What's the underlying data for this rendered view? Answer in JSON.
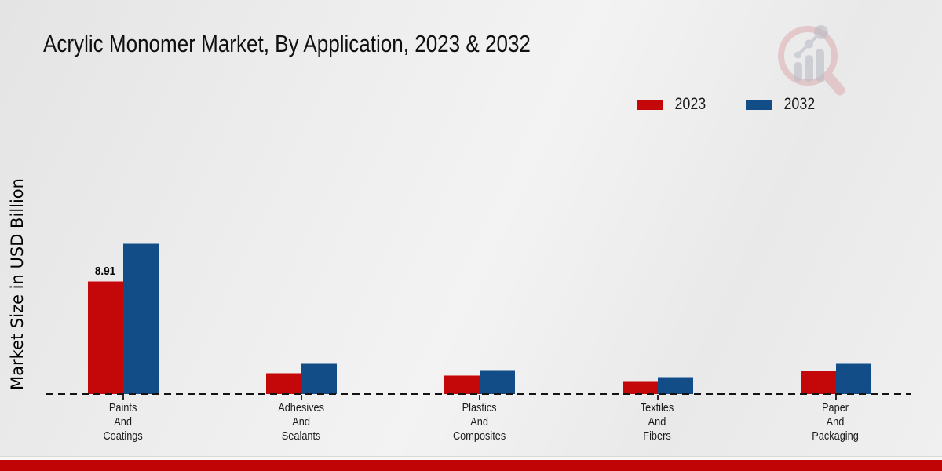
{
  "page": {
    "title": "Acrylic Monomer Market, By Application, 2023 & 2032",
    "logo": "market-research-future-magnifier-logo"
  },
  "colors": {
    "series_2023": "#c40708",
    "series_2032": "#134d87",
    "footer_bar": "#c00304",
    "baseline": "#141414",
    "title_text": "#101010",
    "background": "#ececec",
    "logo_ring": "#dba6aa",
    "logo_bars": "#b9bdc6",
    "bar_label_text": "#000000"
  },
  "chart_data": {
    "type": "bar",
    "title": "Acrylic Monomer Market, By Application, 2023 & 2032",
    "xlabel": "",
    "ylabel": "Market Size in USD Billion",
    "value_unit": "USD Billion",
    "categories": [
      "Paints And Coatings",
      "Adhesives And Sealants",
      "Plastics And Composites",
      "Textiles And Fibers",
      "Paper And Packaging"
    ],
    "series": [
      {
        "name": "2023",
        "color": "#c40708",
        "values": [
          8.91,
          1.65,
          1.45,
          1.0,
          1.8
        ],
        "bar_labels": [
          "8.91",
          "",
          "",
          "",
          ""
        ]
      },
      {
        "name": "2032",
        "color": "#134d87",
        "values": [
          11.87,
          2.35,
          1.87,
          1.3,
          2.35
        ],
        "bar_labels": [
          "",
          "",
          "",
          "",
          ""
        ]
      }
    ],
    "legend_position": "top-right",
    "grid": false,
    "y_axis_ticks_visible": false,
    "baseline_style": "dashed",
    "ylim": [
      0,
      12
    ]
  }
}
